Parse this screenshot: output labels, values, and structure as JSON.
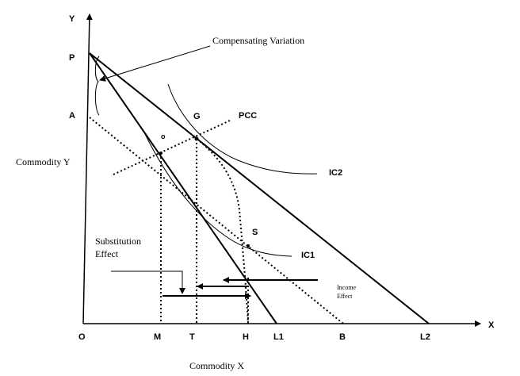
{
  "labels": {
    "y_axis": "Y",
    "x_axis": "X",
    "origin": "O",
    "P": "P",
    "A": "A",
    "G": "G",
    "o": "o",
    "S": "S",
    "PCC": "PCC",
    "IC1": "IC1",
    "IC2": "IC2",
    "M": "M",
    "T": "T",
    "H": "H",
    "L1": "L1",
    "B": "B",
    "L2": "L2"
  },
  "annotations": {
    "compensating_variation": "Compensating Variation",
    "substitution_effect_line1": "Substitution",
    "substitution_effect_line2": "Effect",
    "income_effect_line1": "Income",
    "income_effect_line2": "Effect"
  },
  "axis_titles": {
    "y": "Commodity Y",
    "x": "Commodity X"
  }
}
